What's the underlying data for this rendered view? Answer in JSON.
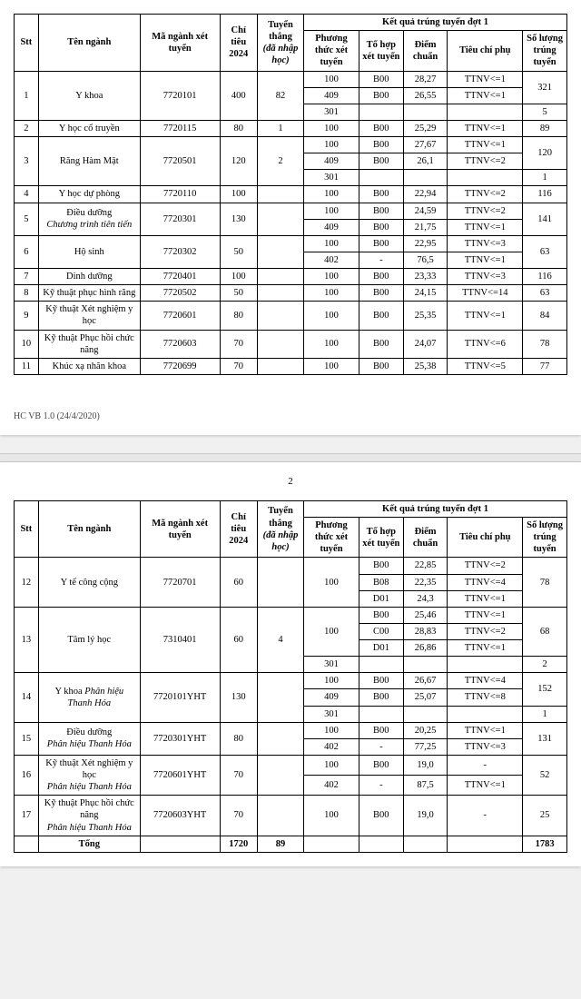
{
  "headers": {
    "stt": "Stt",
    "ten_nganh": "Tên ngành",
    "ma_nganh": "Mã ngành xét tuyển",
    "chi_tieu": "Chỉ tiêu 2024",
    "tuyen_thang": "Tuyển thẳng",
    "tuyen_thang_note": "(đã nhập học)",
    "ket_qua": "Kết quả trúng tuyển đợt 1",
    "phuong_thuc": "Phương thức xét tuyển",
    "to_hop": "Tổ hợp xét tuyển",
    "diem_chuan": "Điểm chuẩn",
    "tieu_chi": "Tiêu chí phụ",
    "so_luong": "Số lượng trúng tuyển"
  },
  "footer": "HC VB 1.0 (24/4/2020)",
  "page2_num": "2",
  "tong_label": "Tổng",
  "tong_quota": "1720",
  "tong_early": "89",
  "tong_count": "1783",
  "t1": {
    "r1": {
      "stt": "1",
      "name": "Y khoa",
      "code": "7720101",
      "quota": "400",
      "early": "82",
      "m1": "100",
      "c1": "B00",
      "s1": "28,27",
      "p1": "TTNV<=1",
      "m2": "409",
      "c2": "B00",
      "s2": "26,55",
      "p2": "TTNV<=1",
      "cnt12": "321",
      "m3": "301",
      "cnt3": "5"
    },
    "r2": {
      "stt": "2",
      "name": "Y học cổ truyền",
      "code": "7720115",
      "quota": "80",
      "early": "1",
      "m": "100",
      "c": "B00",
      "s": "25,29",
      "p": "TTNV<=1",
      "cnt": "89"
    },
    "r3": {
      "stt": "3",
      "name": "Răng Hàm Mặt",
      "code": "7720501",
      "quota": "120",
      "early": "2",
      "m1": "100",
      "c1": "B00",
      "s1": "27,67",
      "p1": "TTNV<=1",
      "m2": "409",
      "c2": "B00",
      "s2": "26,1",
      "p2": "TTNV<=2",
      "cnt12": "120",
      "m3": "301",
      "cnt3": "1"
    },
    "r4": {
      "stt": "4",
      "name": "Y học dự phòng",
      "code": "7720110",
      "quota": "100",
      "m": "100",
      "c": "B00",
      "s": "22,94",
      "p": "TTNV<=2",
      "cnt": "116"
    },
    "r5": {
      "stt": "5",
      "name1": "Điều dưỡng",
      "name2": "Chương trình tiên tiến",
      "code": "7720301",
      "quota": "130",
      "m1": "100",
      "c1": "B00",
      "s1": "24,59",
      "p1": "TTNV<=2",
      "m2": "409",
      "c2": "B00",
      "s2": "21,75",
      "p2": "TTNV<=1",
      "cnt": "141"
    },
    "r6": {
      "stt": "6",
      "name": "Hộ sinh",
      "code": "7720302",
      "quota": "50",
      "m1": "100",
      "c1": "B00",
      "s1": "22,95",
      "p1": "TTNV<=3",
      "m2": "402",
      "c2": "-",
      "s2": "76,5",
      "p2": "TTNV<=1",
      "cnt": "63"
    },
    "r7": {
      "stt": "7",
      "name": "Dinh dưỡng",
      "code": "7720401",
      "quota": "100",
      "m": "100",
      "c": "B00",
      "s": "23,33",
      "p": "TTNV<=3",
      "cnt": "116"
    },
    "r8": {
      "stt": "8",
      "name": "Kỹ thuật phục hình răng",
      "code": "7720502",
      "quota": "50",
      "m": "100",
      "c": "B00",
      "s": "24,15",
      "p": "TTNV<=14",
      "cnt": "63"
    },
    "r9": {
      "stt": "9",
      "name": "Kỹ thuật Xét nghiệm y học",
      "code": "7720601",
      "quota": "80",
      "m": "100",
      "c": "B00",
      "s": "25,35",
      "p": "TTNV<=1",
      "cnt": "84"
    },
    "r10": {
      "stt": "10",
      "name": "Kỹ thuật Phục hồi chức năng",
      "code": "7720603",
      "quota": "70",
      "m": "100",
      "c": "B00",
      "s": "24,07",
      "p": "TTNV<=6",
      "cnt": "78"
    },
    "r11": {
      "stt": "11",
      "name": "Khúc xạ nhãn khoa",
      "code": "7720699",
      "quota": "70",
      "m": "100",
      "c": "B00",
      "s": "25,38",
      "p": "TTNV<=5",
      "cnt": "77"
    }
  },
  "t2": {
    "r12": {
      "stt": "12",
      "name": "Y tế công cộng",
      "code": "7720701",
      "quota": "60",
      "m": "100",
      "c1": "B00",
      "s1": "22,85",
      "p1": "TTNV<=2",
      "c2": "B08",
      "s2": "22,35",
      "p2": "TTNV<=4",
      "c3": "D01",
      "s3": "24,3",
      "p3": "TTNV<=1",
      "cnt": "78"
    },
    "r13": {
      "stt": "13",
      "name": "Tâm lý học",
      "code": "7310401",
      "quota": "60",
      "early": "4",
      "m1": "100",
      "c1": "B00",
      "s1": "25,46",
      "p1": "TTNV<=1",
      "c2": "C00",
      "s2": "28,83",
      "p2": "TTNV<=2",
      "c3": "D01",
      "s3": "26,86",
      "p3": "TTNV<=1",
      "cnt1": "68",
      "m2": "301",
      "cnt2": "2"
    },
    "r14": {
      "stt": "14",
      "name1": "Y khoa",
      "name2": "Phân hiệu Thanh Hóa",
      "code": "7720101YHT",
      "quota": "130",
      "m1": "100",
      "c1": "B00",
      "s1": "26,67",
      "p1": "TTNV<=4",
      "m2": "409",
      "c2": "B00",
      "s2": "25,07",
      "p2": "TTNV<=8",
      "cnt12": "152",
      "m3": "301",
      "cnt3": "1"
    },
    "r15": {
      "stt": "15",
      "name1": "Điều dưỡng",
      "name2": "Phân hiệu Thanh Hóa",
      "code": "7720301YHT",
      "quota": "80",
      "m1": "100",
      "c1": "B00",
      "s1": "20,25",
      "p1": "TTNV<=1",
      "m2": "402",
      "c2": "-",
      "s2": "77,25",
      "p2": "TTNV<=3",
      "cnt": "131"
    },
    "r16": {
      "stt": "16",
      "name1": "Kỹ thuật Xét nghiệm y học",
      "name2": "Phân hiệu Thanh Hóa",
      "code": "7720601YHT",
      "quota": "70",
      "m1": "100",
      "c1": "B00",
      "s1": "19,0",
      "p1": "-",
      "m2": "402",
      "c2": "-",
      "s2": "87,5",
      "p2": "TTNV<=1",
      "cnt": "52"
    },
    "r17": {
      "stt": "17",
      "name1": "Kỹ thuật Phục hồi chức năng",
      "name2": "Phân hiệu Thanh Hóa",
      "code": "7720603YHT",
      "quota": "70",
      "m": "100",
      "c": "B00",
      "s": "19,0",
      "p": "-",
      "cnt": "25"
    }
  }
}
